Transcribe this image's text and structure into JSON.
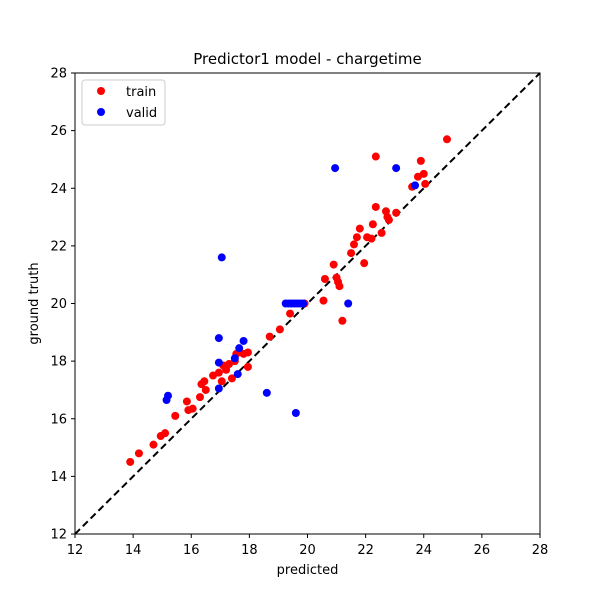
{
  "chart_data": {
    "type": "scatter",
    "title": "Predictor1 model - chargetime",
    "xlabel": "predicted",
    "ylabel": "ground truth",
    "xlim": [
      12,
      28
    ],
    "ylim": [
      12,
      28
    ],
    "xticks": [
      "12",
      "14",
      "16",
      "18",
      "20",
      "22",
      "24",
      "26",
      "28"
    ],
    "yticks": [
      "12",
      "14",
      "16",
      "18",
      "20",
      "22",
      "24",
      "26",
      "28"
    ],
    "grid": false,
    "legend_position": "top-left",
    "reference_line": {
      "style": "dashed",
      "color": "#000000",
      "from": [
        12,
        12
      ],
      "to": [
        28,
        28
      ]
    },
    "series": [
      {
        "name": "train",
        "color": "#ff0000",
        "points": [
          [
            13.9,
            14.5
          ],
          [
            14.2,
            14.8
          ],
          [
            14.7,
            15.1
          ],
          [
            14.95,
            15.4
          ],
          [
            15.1,
            15.5
          ],
          [
            15.45,
            16.1
          ],
          [
            15.85,
            16.6
          ],
          [
            15.9,
            16.3
          ],
          [
            16.05,
            16.35
          ],
          [
            16.3,
            16.75
          ],
          [
            16.35,
            17.2
          ],
          [
            16.45,
            17.3
          ],
          [
            16.5,
            17.0
          ],
          [
            16.75,
            17.5
          ],
          [
            16.95,
            17.6
          ],
          [
            17.05,
            17.3
          ],
          [
            17.1,
            17.85
          ],
          [
            17.2,
            17.7
          ],
          [
            17.3,
            17.9
          ],
          [
            17.4,
            17.4
          ],
          [
            17.5,
            18.0
          ],
          [
            17.55,
            18.25
          ],
          [
            17.8,
            18.25
          ],
          [
            17.95,
            18.3
          ],
          [
            17.95,
            17.8
          ],
          [
            18.7,
            18.85
          ],
          [
            19.05,
            19.1
          ],
          [
            19.4,
            19.65
          ],
          [
            19.9,
            20.0
          ],
          [
            20.55,
            20.1
          ],
          [
            20.6,
            20.85
          ],
          [
            20.9,
            21.35
          ],
          [
            21.0,
            20.9
          ],
          [
            21.05,
            20.75
          ],
          [
            21.1,
            20.6
          ],
          [
            21.2,
            19.4
          ],
          [
            21.5,
            21.75
          ],
          [
            21.6,
            22.05
          ],
          [
            21.7,
            22.3
          ],
          [
            21.8,
            22.6
          ],
          [
            21.95,
            21.4
          ],
          [
            22.05,
            22.3
          ],
          [
            22.2,
            22.25
          ],
          [
            22.25,
            22.75
          ],
          [
            22.35,
            23.35
          ],
          [
            22.35,
            25.1
          ],
          [
            22.55,
            22.45
          ],
          [
            22.7,
            23.2
          ],
          [
            22.75,
            23.0
          ],
          [
            22.8,
            22.9
          ],
          [
            23.05,
            23.15
          ],
          [
            23.6,
            24.05
          ],
          [
            23.8,
            24.4
          ],
          [
            23.9,
            24.95
          ],
          [
            24.0,
            24.5
          ],
          [
            24.05,
            24.15
          ],
          [
            24.8,
            25.7
          ]
        ]
      },
      {
        "name": "valid",
        "color": "#0000ff",
        "points": [
          [
            15.15,
            16.65
          ],
          [
            15.2,
            16.8
          ],
          [
            16.95,
            17.05
          ],
          [
            16.95,
            17.95
          ],
          [
            16.95,
            18.8
          ],
          [
            17.05,
            21.6
          ],
          [
            17.5,
            18.1
          ],
          [
            17.6,
            17.55
          ],
          [
            17.65,
            18.45
          ],
          [
            17.8,
            18.7
          ],
          [
            18.6,
            16.9
          ],
          [
            19.25,
            20.0
          ],
          [
            19.35,
            20.0
          ],
          [
            19.45,
            20.0
          ],
          [
            19.55,
            20.0
          ],
          [
            19.6,
            16.2
          ],
          [
            19.65,
            20.0
          ],
          [
            19.75,
            20.0
          ],
          [
            19.85,
            20.0
          ],
          [
            20.95,
            24.7
          ],
          [
            21.4,
            20.0
          ],
          [
            23.05,
            24.7
          ],
          [
            23.7,
            24.1
          ]
        ]
      }
    ]
  }
}
